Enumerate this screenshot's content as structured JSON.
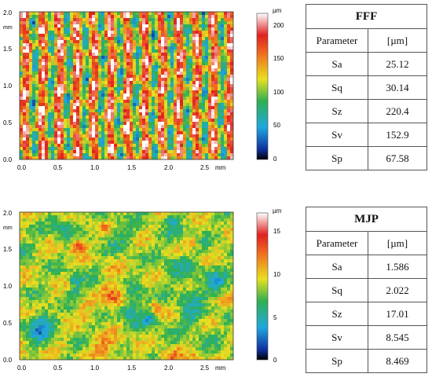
{
  "panels": [
    {
      "key": "fff",
      "map": {
        "y_unit": "mm",
        "x_unit": "mm",
        "x_ticks": [
          "0.0",
          "0.5",
          "1.0",
          "1.5",
          "2.0",
          "2.5"
        ],
        "y_ticks": [
          "0.0",
          "0.5",
          "1.0",
          "1.5",
          "2.0"
        ],
        "pattern": "vertical stripes"
      },
      "colorbar": {
        "unit": "µm",
        "ticks": [
          "0",
          "50",
          "100",
          "150",
          "200"
        ],
        "min": 0,
        "max": 220
      },
      "table": {
        "title": "FFF",
        "header": [
          "Parameter",
          "[µm]"
        ],
        "rows": [
          [
            "Sa",
            "25.12"
          ],
          [
            "Sq",
            "30.14"
          ],
          [
            "Sz",
            "220.4"
          ],
          [
            "Sv",
            "152.9"
          ],
          [
            "Sp",
            "67.58"
          ]
        ]
      }
    },
    {
      "key": "mjp",
      "map": {
        "y_unit": "mm",
        "x_unit": "mm",
        "x_ticks": [
          "0.0",
          "0.5",
          "1.0",
          "1.5",
          "2.0",
          "2.5"
        ],
        "y_ticks": [
          "0.0",
          "0.5",
          "1.0",
          "1.5",
          "2.0"
        ],
        "pattern": "random blotches"
      },
      "colorbar": {
        "unit": "µm",
        "ticks": [
          "0",
          "5",
          "10",
          "15"
        ],
        "min": 0,
        "max": 17
      },
      "table": {
        "title": "MJP",
        "header": [
          "Parameter",
          "[µm]"
        ],
        "rows": [
          [
            "Sa",
            "1.586"
          ],
          [
            "Sq",
            "2.022"
          ],
          [
            "Sz",
            "17.01"
          ],
          [
            "Sv",
            "8.545"
          ],
          [
            "Sp",
            "8.469"
          ]
        ]
      }
    }
  ]
}
